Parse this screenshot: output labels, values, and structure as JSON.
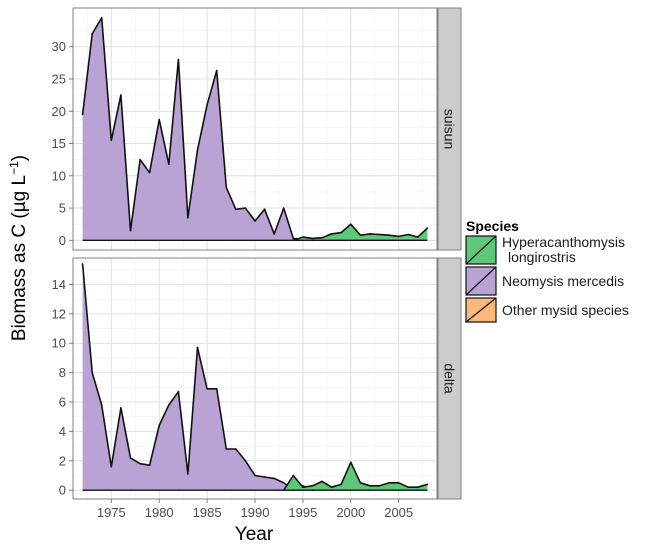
{
  "chart_data": {
    "type": "area",
    "xlabel": "Year",
    "ylabel_main": "Biomass as C (µg L",
    "ylabel_sup": "−1",
    "ylabel_close": ")",
    "x_ticks": [
      1975,
      1980,
      1985,
      1990,
      1995,
      2000,
      2005
    ],
    "xlim": [
      1971,
      2009
    ],
    "legend": {
      "title": "Species",
      "position": "right",
      "entries": [
        {
          "label_lines": [
            "Hyperacanthomysis",
            "longirostris"
          ],
          "color": "#5cc878"
        },
        {
          "label_lines": [
            "Neomysis mercedis"
          ],
          "color": "#b9a2d4"
        },
        {
          "label_lines": [
            "Other mysid species"
          ],
          "color": "#f9b97a"
        }
      ]
    },
    "panels": [
      {
        "strip": "suisun",
        "ylim": [
          -1.5,
          36
        ],
        "y_ticks": [
          0,
          5,
          10,
          15,
          20,
          25,
          30
        ],
        "series": [
          {
            "species": "Neomysis mercedis",
            "color": "#b9a2d4",
            "x": [
              1972,
              1973,
              1974,
              1975,
              1976,
              1977,
              1978,
              1979,
              1980,
              1981,
              1982,
              1983,
              1984,
              1985,
              1986,
              1987,
              1988,
              1989,
              1990,
              1991,
              1992,
              1993,
              1994,
              1995,
              1996
            ],
            "y": [
              19.5,
              32,
              34.5,
              15.5,
              22.5,
              1.5,
              12.5,
              10.5,
              18.7,
              11.8,
              28,
              3.5,
              14,
              21,
              26.3,
              8.2,
              4.8,
              5,
              3,
              4.8,
              1,
              5,
              0.3,
              0.15,
              0
            ]
          },
          {
            "species": "Hyperacanthomysis longirostris",
            "color": "#5cc878",
            "x": [
              1994,
              1995,
              1996,
              1997,
              1998,
              1999,
              2000,
              2001,
              2002,
              2003,
              2004,
              2005,
              2006,
              2007,
              2008
            ],
            "y": [
              0,
              0.5,
              0.3,
              0.4,
              1,
              1.2,
              2.5,
              0.8,
              1,
              0.9,
              0.8,
              0.6,
              0.9,
              0.5,
              1.9
            ]
          }
        ]
      },
      {
        "strip": "delta",
        "ylim": [
          -0.6,
          15.8
        ],
        "y_ticks": [
          0,
          2,
          4,
          6,
          8,
          10,
          12,
          14
        ],
        "series": [
          {
            "species": "Neomysis mercedis",
            "color": "#b9a2d4",
            "x": [
              1972,
              1973,
              1974,
              1975,
              1976,
              1977,
              1978,
              1979,
              1980,
              1981,
              1982,
              1983,
              1984,
              1985,
              1986,
              1987,
              1988,
              1989,
              1990,
              1991,
              1992,
              1993,
              1994,
              1995,
              1996,
              1997,
              1998
            ],
            "y": [
              15.4,
              8,
              5.8,
              1.6,
              5.6,
              2.2,
              1.8,
              1.7,
              4.4,
              5.8,
              6.7,
              1.1,
              9.7,
              6.9,
              6.9,
              2.8,
              2.8,
              2,
              1,
              0.9,
              0.8,
              0.5,
              0,
              0.3,
              0,
              0.2,
              0
            ]
          },
          {
            "species": "Hyperacanthomysis longirostris",
            "color": "#5cc878",
            "x": [
              1993,
              1994,
              1995,
              1996,
              1997,
              1998,
              1999,
              2000,
              2001,
              2002,
              2003,
              2004,
              2005,
              2006,
              2007,
              2008
            ],
            "y": [
              0,
              1,
              0.2,
              0.3,
              0.6,
              0.2,
              0.4,
              1.9,
              0.5,
              0.3,
              0.3,
              0.5,
              0.5,
              0.2,
              0.2,
              0.4
            ]
          }
        ]
      }
    ]
  }
}
